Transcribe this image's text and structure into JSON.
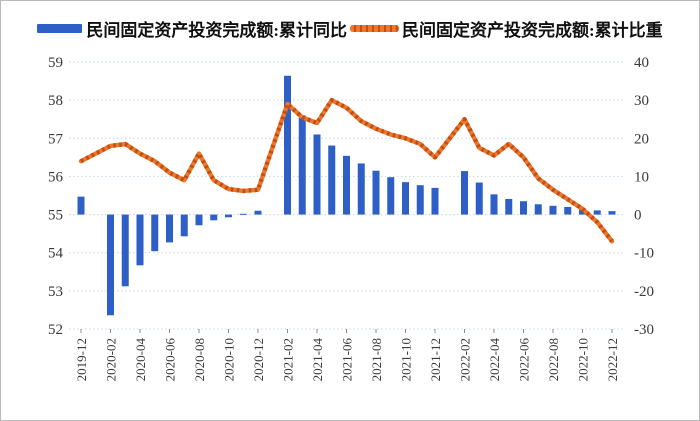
{
  "legend": {
    "items": [
      {
        "label": "民间固定资产投资完成额:累计同比",
        "marker": "bar",
        "color": "#2e5fc6"
      },
      {
        "label": "民间固定资产投资完成额:累计比重",
        "marker": "dashed-line",
        "color": "#e8792c"
      }
    ]
  },
  "chart_data": {
    "type": "bar+line combo, dual axis",
    "grid": true,
    "legend_position": "top-center",
    "left_axis": {
      "min": 52,
      "max": 59,
      "ticks": [
        59,
        58,
        57,
        56,
        55,
        54,
        53,
        52
      ]
    },
    "right_axis": {
      "min": -30,
      "max": 40,
      "ticks": [
        40,
        30,
        20,
        10,
        0,
        -10,
        -20,
        -30
      ]
    },
    "x_tick_labels": [
      "2019-12",
      "2020-02",
      "2020-04",
      "2020-06",
      "2020-08",
      "2020-10",
      "2020-12",
      "2021-02",
      "2021-04",
      "2021-06",
      "2021-08",
      "2021-10",
      "2021-12",
      "2022-02",
      "2022-04",
      "2022-06",
      "2022-08",
      "2022-10",
      "2022-12"
    ],
    "colors": {
      "bar": "#2e5fc6",
      "line": "#e8792c",
      "line_dash": "#c84c10",
      "grid": "#c5d5ec",
      "tick": "#8a8a8a"
    },
    "series": [
      {
        "name": "民间固定资产投资完成额:累计同比",
        "type": "bar",
        "axis": "right",
        "color": "#2e5fc6",
        "points": [
          {
            "month": "2019-12",
            "value": 4.7
          },
          {
            "month": "2020-02",
            "value": -26.4
          },
          {
            "month": "2020-03",
            "value": -18.8
          },
          {
            "month": "2020-04",
            "value": -13.3
          },
          {
            "month": "2020-05",
            "value": -9.6
          },
          {
            "month": "2020-06",
            "value": -7.3
          },
          {
            "month": "2020-07",
            "value": -5.7
          },
          {
            "month": "2020-08",
            "value": -2.8
          },
          {
            "month": "2020-09",
            "value": -1.5
          },
          {
            "month": "2020-10",
            "value": -0.7
          },
          {
            "month": "2020-11",
            "value": 0.2
          },
          {
            "month": "2020-12",
            "value": 1.0
          },
          {
            "month": "2021-02",
            "value": 36.4
          },
          {
            "month": "2021-03",
            "value": 26.0
          },
          {
            "month": "2021-04",
            "value": 21.0
          },
          {
            "month": "2021-05",
            "value": 18.1
          },
          {
            "month": "2021-06",
            "value": 15.4
          },
          {
            "month": "2021-07",
            "value": 13.4
          },
          {
            "month": "2021-08",
            "value": 11.5
          },
          {
            "month": "2021-09",
            "value": 9.8
          },
          {
            "month": "2021-10",
            "value": 8.5
          },
          {
            "month": "2021-11",
            "value": 7.7
          },
          {
            "month": "2021-12",
            "value": 7.0
          },
          {
            "month": "2022-02",
            "value": 11.4
          },
          {
            "month": "2022-03",
            "value": 8.4
          },
          {
            "month": "2022-04",
            "value": 5.3
          },
          {
            "month": "2022-05",
            "value": 4.1
          },
          {
            "month": "2022-06",
            "value": 3.5
          },
          {
            "month": "2022-07",
            "value": 2.7
          },
          {
            "month": "2022-08",
            "value": 2.3
          },
          {
            "month": "2022-09",
            "value": 2.0
          },
          {
            "month": "2022-10",
            "value": 1.6
          },
          {
            "month": "2022-11",
            "value": 1.1
          },
          {
            "month": "2022-12",
            "value": 0.9
          }
        ]
      },
      {
        "name": "民间固定资产投资完成额:累计比重",
        "type": "line",
        "axis": "left",
        "color": "#e8792c",
        "points": [
          {
            "month": "2019-12",
            "value": 56.4
          },
          {
            "month": "2020-02",
            "value": 56.8
          },
          {
            "month": "2020-03",
            "value": 56.85
          },
          {
            "month": "2020-04",
            "value": 56.6
          },
          {
            "month": "2020-05",
            "value": 56.4
          },
          {
            "month": "2020-06",
            "value": 56.1
          },
          {
            "month": "2020-07",
            "value": 55.9
          },
          {
            "month": "2020-08",
            "value": 56.6
          },
          {
            "month": "2020-09",
            "value": 55.9
          },
          {
            "month": "2020-10",
            "value": 55.67
          },
          {
            "month": "2020-11",
            "value": 55.62
          },
          {
            "month": "2020-12",
            "value": 55.65
          },
          {
            "month": "2021-02",
            "value": 57.9
          },
          {
            "month": "2021-03",
            "value": 57.55
          },
          {
            "month": "2021-04",
            "value": 57.4
          },
          {
            "month": "2021-05",
            "value": 58.0
          },
          {
            "month": "2021-06",
            "value": 57.8
          },
          {
            "month": "2021-07",
            "value": 57.45
          },
          {
            "month": "2021-08",
            "value": 57.25
          },
          {
            "month": "2021-09",
            "value": 57.1
          },
          {
            "month": "2021-10",
            "value": 57.0
          },
          {
            "month": "2021-11",
            "value": 56.85
          },
          {
            "month": "2021-12",
            "value": 56.5
          },
          {
            "month": "2022-02",
            "value": 57.5
          },
          {
            "month": "2022-03",
            "value": 56.75
          },
          {
            "month": "2022-04",
            "value": 56.55
          },
          {
            "month": "2022-05",
            "value": 56.85
          },
          {
            "month": "2022-06",
            "value": 56.5
          },
          {
            "month": "2022-07",
            "value": 55.95
          },
          {
            "month": "2022-08",
            "value": 55.65
          },
          {
            "month": "2022-09",
            "value": 55.4
          },
          {
            "month": "2022-10",
            "value": 55.15
          },
          {
            "month": "2022-11",
            "value": 54.8
          },
          {
            "month": "2022-12",
            "value": 54.3
          }
        ]
      }
    ]
  }
}
